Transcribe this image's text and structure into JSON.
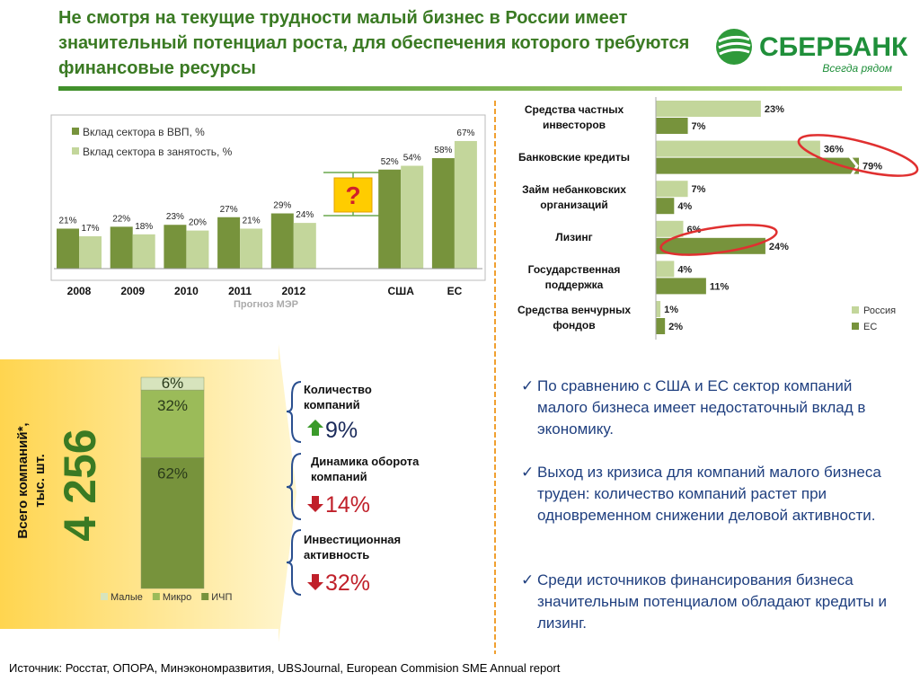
{
  "header": {
    "title": "Не смотря на текущие трудности малый бизнес в России имеет значительный потенциал роста, для обеспечения которого требуются финансовые ресурсы",
    "logo": "СБЕРБАНК",
    "slogan": "Всегда рядом"
  },
  "chart_data": [
    {
      "type": "bar",
      "categories": [
        "2008",
        "2009",
        "2010",
        "2011",
        "2012",
        null,
        "США",
        "ЕС"
      ],
      "series": [
        {
          "name": "Вклад сектора в ВВП, %",
          "color": "#77933c",
          "values": [
            21,
            22,
            23,
            27,
            29,
            null,
            52,
            58
          ],
          "value_labels": [
            "21%",
            "22%",
            "23%",
            "27%",
            "29%",
            null,
            "52%",
            "58%"
          ]
        },
        {
          "name": "Вклад сектора в занятость, %",
          "color": "#c3d69b",
          "values": [
            17,
            18,
            20,
            21,
            24,
            null,
            54,
            67
          ],
          "value_labels": [
            "17%",
            "18%",
            "20%",
            "21%",
            "24%",
            null,
            "54%",
            "67%"
          ]
        }
      ],
      "annotations": [
        "Прогноз МЭР",
        "?"
      ]
    },
    {
      "type": "hbar",
      "categories": [
        "Средства частных инвесторов",
        "Банковские кредиты",
        "Займ небанковских организаций",
        "Лизинг",
        "Государственная поддержка",
        "Средства венчурных фондов"
      ],
      "series": [
        {
          "name": "Россия",
          "color": "#c3d69b",
          "values": [
            23,
            36,
            7,
            6,
            4,
            1
          ],
          "value_labels": [
            "23%",
            "36%",
            "7%",
            "6%",
            "4%",
            "1%"
          ]
        },
        {
          "name": "ЕС",
          "color": "#77933c",
          "values": [
            7,
            79,
            4,
            24,
            11,
            2
          ],
          "value_labels": [
            "7%",
            "79%",
            "4%",
            "24%",
            "11%",
            "2%"
          ]
        }
      ]
    },
    {
      "type": "stacked",
      "categories": [
        null
      ],
      "series": [
        {
          "name": "Малые",
          "color": "#d7e4bd",
          "values": [
            6
          ],
          "value_labels": [
            "6%"
          ]
        },
        {
          "name": "Микро",
          "color": "#9bbb59",
          "values": [
            32
          ],
          "value_labels": [
            "32%"
          ]
        },
        {
          "name": "ИЧП",
          "color": "#77933c",
          "values": [
            62
          ],
          "value_labels": [
            "62%"
          ]
        }
      ]
    }
  ],
  "panel": {
    "label": "Всего компаний*, тыс. шт.",
    "value": "4 256"
  },
  "indicators": [
    {
      "label": "Количество компаний",
      "direction": "up",
      "value": "9%"
    },
    {
      "label": "Динамика оборота компаний",
      "direction": "down",
      "value": "14%"
    },
    {
      "label": "Инвестиционная активность",
      "direction": "down",
      "value": "32%"
    }
  ],
  "bullets": [
    "По сравнению с США и ЕС сектор компаний малого бизнеса имеет недостаточный вклад в экономику.",
    "Выход из кризиса для компаний малого бизнеса труден: количество компаний растет при одновременном снижении деловой активности.",
    "Среди источников финансирования бизнеса значительным потенциалом обладают кредиты и лизинг."
  ],
  "source": "Источник: Росстат, ОПОРА, Минэкономразвития, UBSJournal, European Commision SME Annual report"
}
